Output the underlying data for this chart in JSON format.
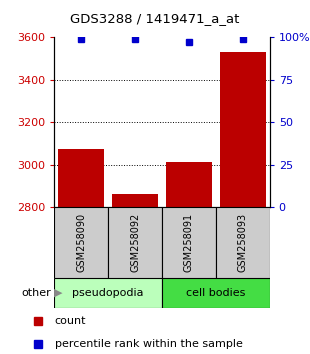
{
  "title": "GDS3288 / 1419471_a_at",
  "samples": [
    "GSM258090",
    "GSM258092",
    "GSM258091",
    "GSM258093"
  ],
  "count_values": [
    3075,
    2860,
    3010,
    3530
  ],
  "percentile_values": [
    99,
    99,
    97,
    99
  ],
  "ylim_left": [
    2800,
    3600
  ],
  "ylim_right": [
    0,
    100
  ],
  "yticks_left": [
    2800,
    3000,
    3200,
    3400,
    3600
  ],
  "yticks_right": [
    0,
    25,
    50,
    75,
    100
  ],
  "ytick_labels_right": [
    "0",
    "25",
    "50",
    "75",
    "100%"
  ],
  "bar_color": "#bb0000",
  "percentile_color": "#0000cc",
  "groups": [
    {
      "label": "pseudopodia",
      "indices": [
        0,
        1
      ],
      "color": "#bbffbb"
    },
    {
      "label": "cell bodies",
      "indices": [
        2,
        3
      ],
      "color": "#44dd44"
    }
  ],
  "sample_box_color": "#cccccc",
  "grid_color": "#000000",
  "left_tick_color": "#cc0000",
  "right_tick_color": "#0000cc",
  "bar_width": 0.85,
  "other_label": "other",
  "legend_count_label": "count",
  "legend_pct_label": "percentile rank within the sample"
}
